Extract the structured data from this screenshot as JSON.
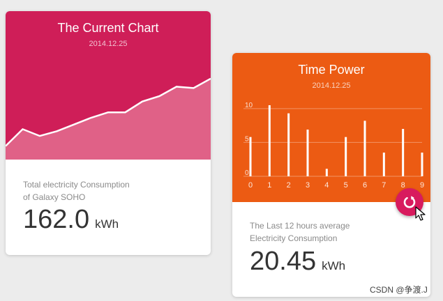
{
  "colors": {
    "card1_header": "#cf1e58",
    "card1_area_fill": "#e06187",
    "card2_header": "#ec5b13",
    "fab": "#d81b5e",
    "page_bg": "#ececec"
  },
  "card1": {
    "title": "The Current Chart",
    "date": "2014.12.25",
    "desc_line1": "Total electricity Consumption",
    "desc_line2": "of Galaxy SOHO",
    "value": "162.0",
    "unit": "kWh"
  },
  "card2": {
    "title": "Time Power",
    "date": "2014.12.25",
    "desc_line1": "The Last 12 hours average",
    "desc_line2": "Electricity Consumption",
    "value": "20.45",
    "unit": "kWh"
  },
  "fab": {
    "icon": "refresh-icon"
  },
  "watermark": "CSDN @争渡.J",
  "chart_data": [
    {
      "type": "area",
      "x": [
        0,
        1,
        2,
        3,
        4,
        5,
        6,
        7,
        8,
        9,
        10,
        11,
        12
      ],
      "values": [
        2,
        4.5,
        3.5,
        4.2,
        5.2,
        6.2,
        7.0,
        7.0,
        8.6,
        9.4,
        10.8,
        10.6,
        12.0
      ],
      "ylim": [
        0,
        22
      ],
      "grid": false
    },
    {
      "type": "bar",
      "categories": [
        "0",
        "1",
        "2",
        "3",
        "4",
        "5",
        "6",
        "7",
        "8",
        "9"
      ],
      "values": [
        5.8,
        10.5,
        9.3,
        6.9,
        1.1,
        5.8,
        8.2,
        3.5,
        7.0,
        3.5
      ],
      "yticks": [
        "0",
        "5",
        "10"
      ],
      "ylim": [
        0,
        10.5
      ],
      "grid": true
    }
  ]
}
